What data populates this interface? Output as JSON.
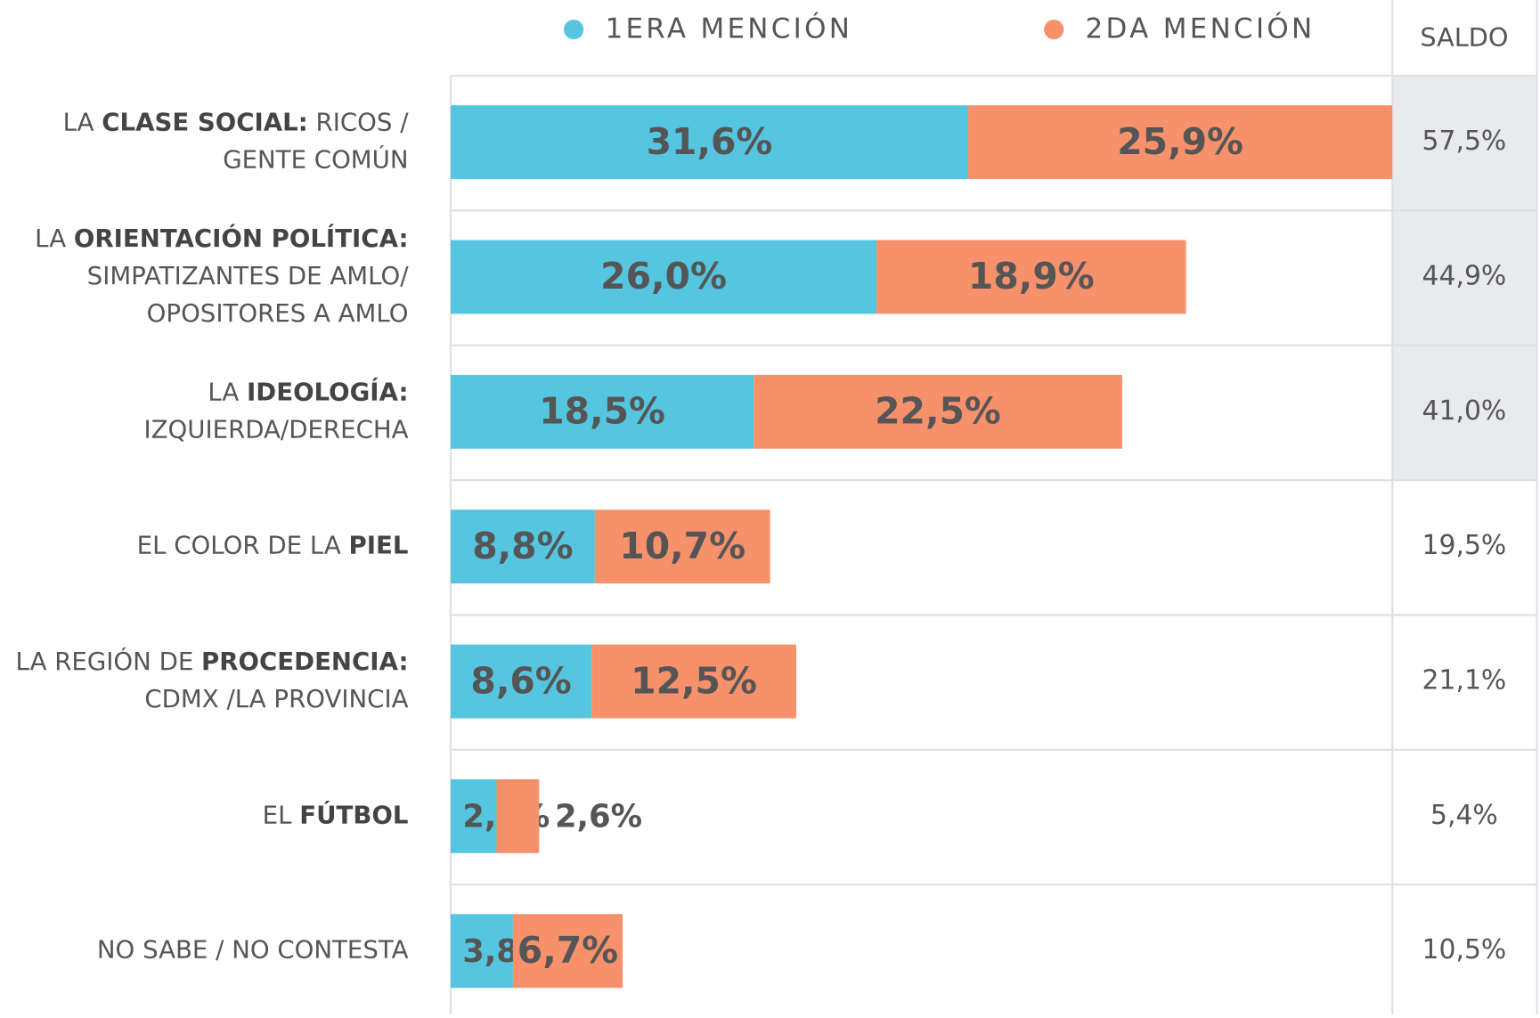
{
  "chart_data": {
    "type": "stacked-bar-horizontal",
    "categories": [
      [
        [
          {
            "text": "LA ",
            "bold": false
          },
          {
            "text": "CLASE SOCIAL:",
            "bold": true
          },
          {
            "text": " RICOS /",
            "bold": false
          }
        ],
        [
          {
            "text": "GENTE COMÚN",
            "bold": false
          }
        ]
      ],
      [
        [
          {
            "text": "LA ",
            "bold": false
          },
          {
            "text": "ORIENTACIÓN POLÍTICA:",
            "bold": true
          }
        ],
        [
          {
            "text": "SIMPATIZANTES DE AMLO/",
            "bold": false
          }
        ],
        [
          {
            "text": "OPOSITORES A AMLO",
            "bold": false
          }
        ]
      ],
      [
        [
          {
            "text": "LA ",
            "bold": false
          },
          {
            "text": "IDEOLOGÍA:",
            "bold": true
          }
        ],
        [
          {
            "text": "IZQUIERDA/DERECHA",
            "bold": false
          }
        ]
      ],
      [
        [
          {
            "text": "EL COLOR DE LA ",
            "bold": false
          },
          {
            "text": "PIEL",
            "bold": true
          }
        ]
      ],
      [
        [
          {
            "text": "LA REGIÓN DE ",
            "bold": false
          },
          {
            "text": "PROCEDENCIA:",
            "bold": true
          }
        ],
        [
          {
            "text": "CDMX /LA PROVINCIA",
            "bold": false
          }
        ]
      ],
      [
        [
          {
            "text": "EL ",
            "bold": false
          },
          {
            "text": "FÚTBOL",
            "bold": true
          }
        ]
      ],
      [
        [
          {
            "text": "NO SABE / NO CONTESTA",
            "bold": false
          }
        ]
      ]
    ],
    "series": [
      {
        "name": "1ERA MENCIÓN",
        "color": "#56c5e0",
        "values": [
          31.6,
          26.0,
          18.5,
          8.8,
          8.6,
          2.8,
          3.8
        ],
        "value_labels": [
          "31,6%",
          "26,0%",
          "18,5%",
          "8,8%",
          "8,6%",
          "2,8%",
          "3,8%"
        ]
      },
      {
        "name": "2DA MENCIÓN",
        "color": "#f7916c",
        "values": [
          25.9,
          18.9,
          22.5,
          10.7,
          12.5,
          2.6,
          6.7
        ],
        "value_labels": [
          "25,9%",
          "18,9%",
          "22,5%",
          "10,7%",
          "12,5%",
          "2,6%",
          "6,7%"
        ]
      }
    ],
    "saldo": {
      "name": "SALDO",
      "values": [
        57.5,
        44.9,
        41.0,
        19.5,
        21.1,
        5.4,
        10.5
      ],
      "value_labels": [
        "57,5%",
        "44,9%",
        "41,0%",
        "19,5%",
        "21,1%",
        "5,4%",
        "10,5%"
      ],
      "highlight": [
        true,
        true,
        true,
        false,
        false,
        false,
        false
      ],
      "highlight_color": "#e8eaee"
    },
    "xlim": [
      0,
      57.5
    ]
  }
}
